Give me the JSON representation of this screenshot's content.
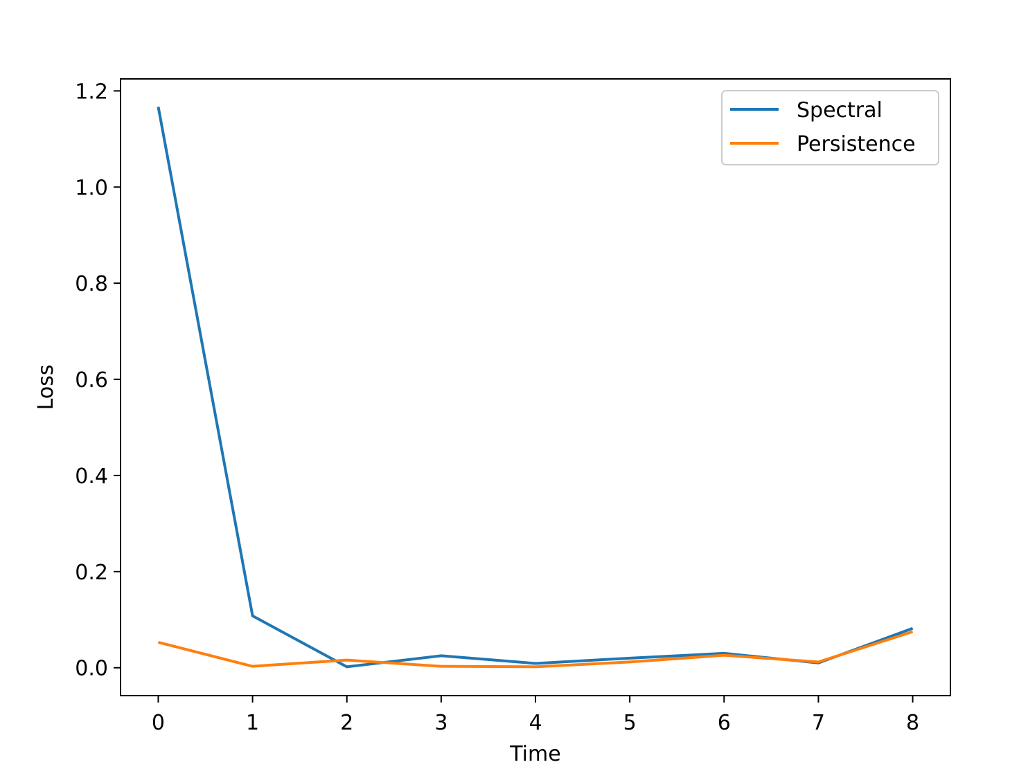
{
  "chart_data": {
    "type": "line",
    "title": "",
    "xlabel": "Time",
    "ylabel": "Loss",
    "x": [
      0,
      1,
      2,
      3,
      4,
      5,
      6,
      7,
      8
    ],
    "xlim": [
      -0.4,
      8.4
    ],
    "ylim": [
      -0.058,
      1.225
    ],
    "xticks": [
      "0",
      "1",
      "2",
      "3",
      "4",
      "5",
      "6",
      "7",
      "8"
    ],
    "yticks": [
      "0.0",
      "0.2",
      "0.4",
      "0.6",
      "0.8",
      "1.0",
      "1.2"
    ],
    "grid": false,
    "legend_position": "top-right",
    "series": [
      {
        "name": "Spectral",
        "color": "#1f77b4",
        "values": [
          1.167,
          0.108,
          0.002,
          0.025,
          0.009,
          0.02,
          0.03,
          0.01,
          0.082
        ]
      },
      {
        "name": "Persistence",
        "color": "#ff7f0e",
        "values": [
          0.053,
          0.003,
          0.016,
          0.003,
          0.002,
          0.012,
          0.026,
          0.012,
          0.075
        ]
      }
    ]
  }
}
